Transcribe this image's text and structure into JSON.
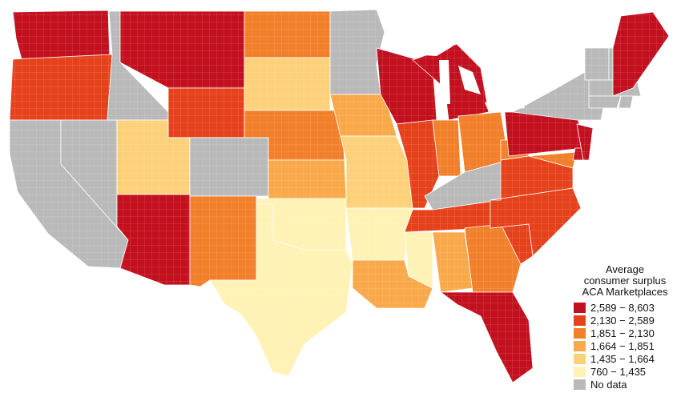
{
  "legend": {
    "title_lines": [
      "Average",
      "consumer surplus",
      "ACA Marketplaces"
    ],
    "items": [
      {
        "label": "2,589 − 8,603",
        "color": "#c3101f"
      },
      {
        "label": "2,130 − 2,589",
        "color": "#e5421c"
      },
      {
        "label": "1,851 − 2,130",
        "color": "#f27f2a"
      },
      {
        "label": "1,664 − 1,851",
        "color": "#f9a94a"
      },
      {
        "label": "1,435 − 1,664",
        "color": "#fdd17a"
      },
      {
        "label": "760 − 1,435",
        "color": "#fff2b5"
      },
      {
        "label": "No data",
        "color": "#b9b9b9"
      }
    ]
  },
  "map": {
    "no_data_states": [
      "ID",
      "NV",
      "CA",
      "CO",
      "MN",
      "KY",
      "NY",
      "VT",
      "NH",
      "MA",
      "CT",
      "RI",
      "DC"
    ],
    "dominant_class_by_state": {
      "WA": "2,589 − 8,603",
      "OR": "2,130 − 2,589",
      "MT": "2,589 − 8,603",
      "ND": "1,851 − 2,130",
      "WY": "2,130 − 2,589",
      "SD": "1,435 − 1,664",
      "UT": "1,435 − 1,664",
      "NE": "1,851 − 2,130",
      "AZ": "2,589 − 8,603",
      "NM": "1,851 − 2,130",
      "KS": "1,664 − 1,851",
      "OK": "760 − 1,435",
      "TX": "760 − 1,435",
      "IA": "1,664 − 1,851",
      "MO": "1,435 − 1,664",
      "AR": "760 − 1,435",
      "LA": "1,664 − 1,851",
      "WI": "2,589 − 8,603",
      "IL": "2,130 − 2,589",
      "MI": "2,589 − 8,603",
      "IN": "1,851 − 2,130",
      "OH": "1,851 − 2,130",
      "TN": "2,130 − 2,589",
      "MS": "760 − 1,435",
      "AL": "1,664 − 1,851",
      "GA": "1,851 − 2,130",
      "FL": "2,589 − 8,603",
      "SC": "2,130 − 2,589",
      "NC": "2,130 − 2,589",
      "VA": "2,130 − 2,589",
      "WV": "1,851 − 2,130",
      "PA": "2,589 − 8,603",
      "NJ": "2,589 − 8,603",
      "MD": "1,851 − 2,130",
      "DE": "2,589 − 8,603",
      "ME": "2,589 − 8,603"
    }
  }
}
